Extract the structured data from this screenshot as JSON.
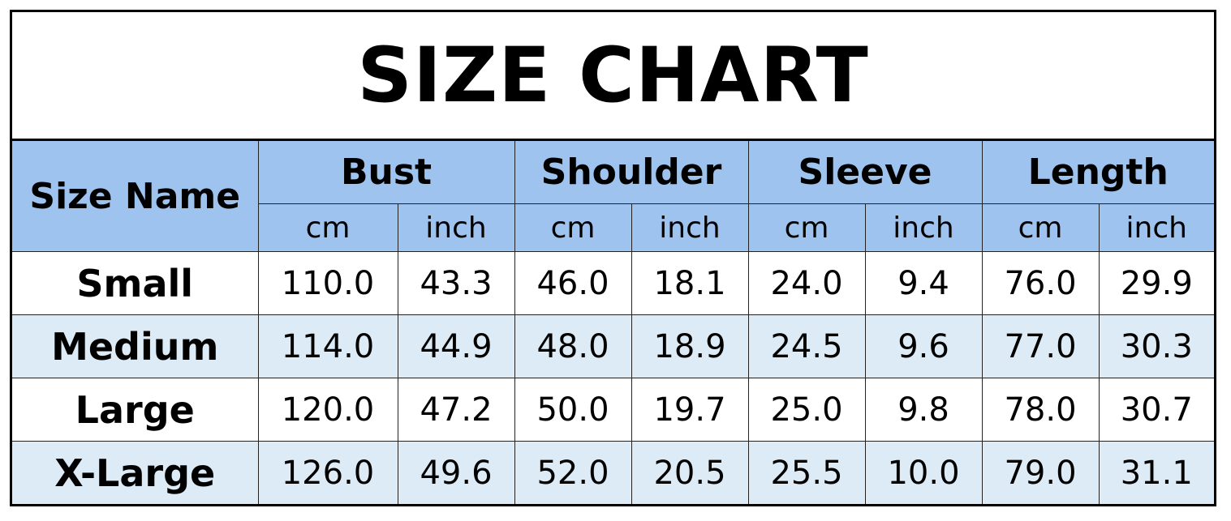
{
  "title": "SIZE CHART",
  "colors": {
    "header_bg": "#9dc3ee",
    "alt_row_bg": "#ddebf7",
    "border": "#000000"
  },
  "header": {
    "size_name": "Size Name",
    "groups": [
      "Bust",
      "Shoulder",
      "Sleeve",
      "Length"
    ],
    "units": [
      "cm",
      "inch",
      "cm",
      "inch",
      "cm",
      "inch",
      "cm",
      "inch"
    ]
  },
  "rows": [
    {
      "name": "Small",
      "values": [
        "110.0",
        "43.3",
        "46.0",
        "18.1",
        "24.0",
        "9.4",
        "76.0",
        "29.9"
      ]
    },
    {
      "name": "Medium",
      "values": [
        "114.0",
        "44.9",
        "48.0",
        "18.9",
        "24.5",
        "9.6",
        "77.0",
        "30.3"
      ]
    },
    {
      "name": "Large",
      "values": [
        "120.0",
        "47.2",
        "50.0",
        "19.7",
        "25.0",
        "9.8",
        "78.0",
        "30.7"
      ]
    },
    {
      "name": "X-Large",
      "values": [
        "126.0",
        "49.6",
        "52.0",
        "20.5",
        "25.5",
        "10.0",
        "79.0",
        "31.1"
      ]
    }
  ]
}
